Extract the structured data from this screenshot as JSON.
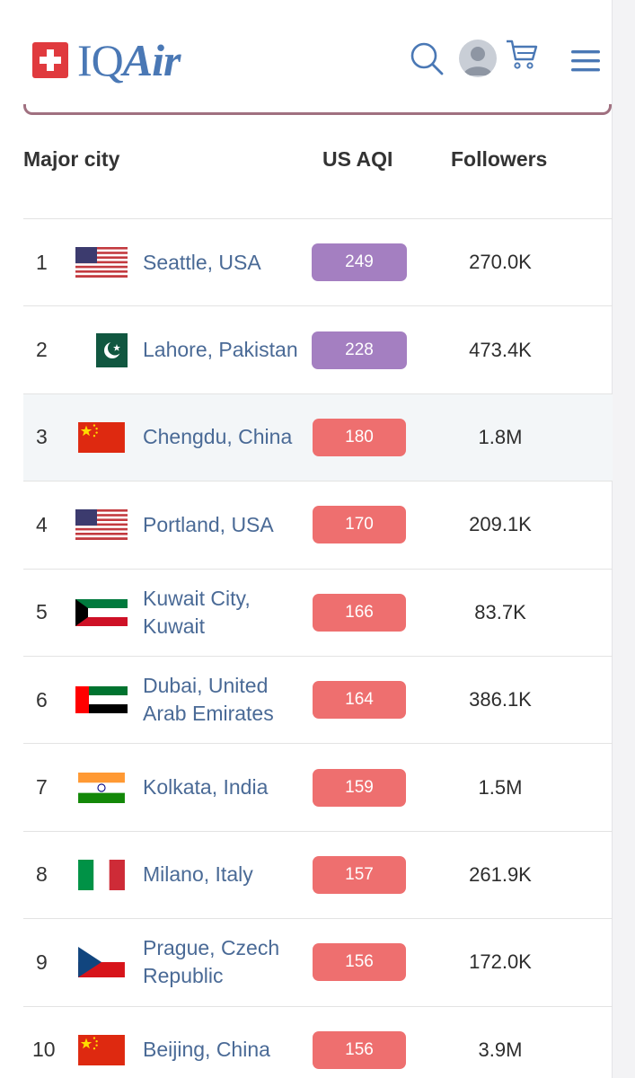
{
  "header": {
    "brand_iq": "IQ",
    "brand_air": "Air",
    "icons": [
      "swiss-flag-icon",
      "search-icon",
      "avatar",
      "cart-icon",
      "hamburger-menu-icon"
    ]
  },
  "table": {
    "columns": {
      "city": "Major city",
      "aqi": "US AQI",
      "followers": "Followers"
    },
    "rows": [
      {
        "rank": "1",
        "flag": "usa",
        "city": "Seattle, USA",
        "aqi": "249",
        "aqi_color": "#a47fc1",
        "followers": "270.0K"
      },
      {
        "rank": "2",
        "flag": "pakistan",
        "city": "Lahore, Pakistan",
        "aqi": "228",
        "aqi_color": "#a47fc1",
        "followers": "473.4K"
      },
      {
        "rank": "3",
        "flag": "china",
        "city": "Chengdu, China",
        "aqi": "180",
        "aqi_color": "#ee6f6f",
        "followers": "1.8M"
      },
      {
        "rank": "4",
        "flag": "usa",
        "city": "Portland, USA",
        "aqi": "170",
        "aqi_color": "#ee6f6f",
        "followers": "209.1K"
      },
      {
        "rank": "5",
        "flag": "kuwait",
        "city": "Kuwait City, Kuwait",
        "aqi": "166",
        "aqi_color": "#ee6f6f",
        "followers": "83.7K"
      },
      {
        "rank": "6",
        "flag": "uae",
        "city": "Dubai, United Arab Emirates",
        "aqi": "164",
        "aqi_color": "#ee6f6f",
        "followers": "386.1K"
      },
      {
        "rank": "7",
        "flag": "india",
        "city": "Kolkata, India",
        "aqi": "159",
        "aqi_color": "#ee6f6f",
        "followers": "1.5M"
      },
      {
        "rank": "8",
        "flag": "italy",
        "city": "Milano, Italy",
        "aqi": "157",
        "aqi_color": "#ee6f6f",
        "followers": "261.9K"
      },
      {
        "rank": "9",
        "flag": "czech",
        "city": "Prague, Czech Republic",
        "aqi": "156",
        "aqi_color": "#ee6f6f",
        "followers": "172.0K"
      },
      {
        "rank": "10",
        "flag": "china",
        "city": "Beijing, China",
        "aqi": "156",
        "aqi_color": "#ee6f6f",
        "followers": "3.9M"
      }
    ]
  }
}
